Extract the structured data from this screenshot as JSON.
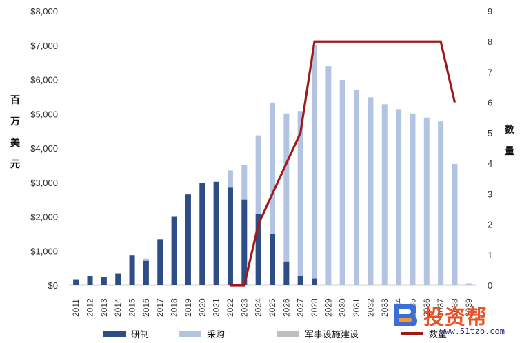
{
  "chart_data": {
    "type": "bar",
    "stacked": true,
    "categories": [
      "2011",
      "2012",
      "2013",
      "2014",
      "2015",
      "2016",
      "2017",
      "2018",
      "2019",
      "2020",
      "2021",
      "2022",
      "2023",
      "2024",
      "2025",
      "2026",
      "2027",
      "2028",
      "2029",
      "2030",
      "2031",
      "2032",
      "2033",
      "2034",
      "2035",
      "2036",
      "2037",
      "2038",
      "2039"
    ],
    "y_left": {
      "label_chars": [
        "百",
        "万",
        "美",
        "元"
      ],
      "ylim": [
        0,
        8000
      ],
      "ticks": [
        "$0",
        "$1,000",
        "$2,000",
        "$3,000",
        "$4,000",
        "$5,000",
        "$6,000",
        "$7,000",
        "$8,000"
      ]
    },
    "y_right": {
      "label_chars": [
        "数",
        "量"
      ],
      "ylim": [
        0,
        9
      ],
      "ticks": [
        "0",
        "1",
        "2",
        "3",
        "4",
        "5",
        "6",
        "7",
        "8",
        "9"
      ]
    },
    "series": [
      {
        "name": "研制",
        "kind": "bar",
        "color": "#2e4d86",
        "values": [
          170,
          280,
          240,
          330,
          880,
          710,
          1340,
          2000,
          2650,
          2980,
          3020,
          2850,
          2500,
          2090,
          1490,
          690,
          280,
          190,
          0,
          0,
          0,
          0,
          0,
          0,
          0,
          0,
          0,
          0,
          0
        ]
      },
      {
        "name": "采购",
        "kind": "bar",
        "color": "#b3c4e2",
        "values": [
          0,
          0,
          0,
          0,
          0,
          60,
          0,
          0,
          0,
          0,
          0,
          500,
          1000,
          2280,
          3840,
          4320,
          4800,
          6800,
          6390,
          5990,
          5710,
          5480,
          5280,
          5140,
          5010,
          4890,
          4780,
          3540,
          50
        ]
      },
      {
        "name": "军事设施建设",
        "kind": "bar",
        "color": "#bfbfbf",
        "values": [
          0,
          0,
          0,
          0,
          0,
          0,
          0,
          0,
          0,
          0,
          0,
          0,
          0,
          0,
          0,
          0,
          0,
          0,
          0,
          0,
          0,
          0,
          0,
          0,
          0,
          0,
          0,
          0,
          0
        ]
      },
      {
        "name": "数量",
        "kind": "line",
        "axis": "right",
        "color": "#a11a1a",
        "x": [
          "2022",
          "2023",
          "2024",
          "2025",
          "2026",
          "2027",
          "2028",
          "2029",
          "2030",
          "2031",
          "2032",
          "2033",
          "2034",
          "2035",
          "2036",
          "2037",
          "2038"
        ],
        "values": [
          0,
          0,
          2,
          3,
          4,
          5,
          8,
          8,
          8,
          8,
          8,
          8,
          8,
          8,
          8,
          8,
          6
        ]
      }
    ],
    "legend_position": "bottom",
    "grid": false
  },
  "watermark": {
    "text": "投资帮",
    "url": "www.51tzb.com"
  }
}
